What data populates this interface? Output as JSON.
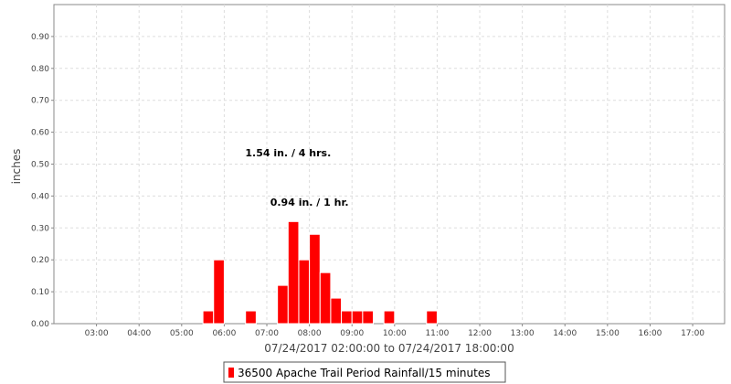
{
  "chart_data": {
    "type": "bar",
    "xlabel": "07/24/2017 02:00:00 to 07/24/2017 18:00:00",
    "ylabel": "inches",
    "ylim": [
      0,
      1.0
    ],
    "xlim": [
      "02:00",
      "17:45"
    ],
    "y_ticks": [
      "0.00",
      "0.10",
      "0.20",
      "0.30",
      "0.40",
      "0.50",
      "0.60",
      "0.70",
      "0.80",
      "0.90"
    ],
    "x_ticks": [
      "03:00",
      "04:00",
      "05:00",
      "06:00",
      "07:00",
      "08:00",
      "09:00",
      "10:00",
      "11:00",
      "12:00",
      "13:00",
      "14:00",
      "15:00",
      "16:00",
      "17:00"
    ],
    "grid": true,
    "legend_position": "bottom",
    "series": [
      {
        "name": "36500 Apache Trail Period Rainfall/15 minutes",
        "color": "#ff0000",
        "interval_minutes": 15,
        "points": [
          {
            "time": "05:30",
            "value": 0.04
          },
          {
            "time": "05:45",
            "value": 0.2
          },
          {
            "time": "06:30",
            "value": 0.04
          },
          {
            "time": "07:15",
            "value": 0.12
          },
          {
            "time": "07:30",
            "value": 0.32
          },
          {
            "time": "07:45",
            "value": 0.2
          },
          {
            "time": "08:00",
            "value": 0.28
          },
          {
            "time": "08:15",
            "value": 0.16
          },
          {
            "time": "08:30",
            "value": 0.08
          },
          {
            "time": "08:45",
            "value": 0.04
          },
          {
            "time": "09:00",
            "value": 0.04
          },
          {
            "time": "09:15",
            "value": 0.04
          },
          {
            "time": "09:45",
            "value": 0.04
          },
          {
            "time": "10:45",
            "value": 0.04
          }
        ]
      }
    ],
    "annotations": [
      {
        "text": "1.54 in. / 4 hrs.",
        "time": "07:30",
        "value": 0.525
      },
      {
        "text": "0.94 in. / 1 hr.",
        "time": "08:00",
        "value": 0.37
      }
    ]
  }
}
